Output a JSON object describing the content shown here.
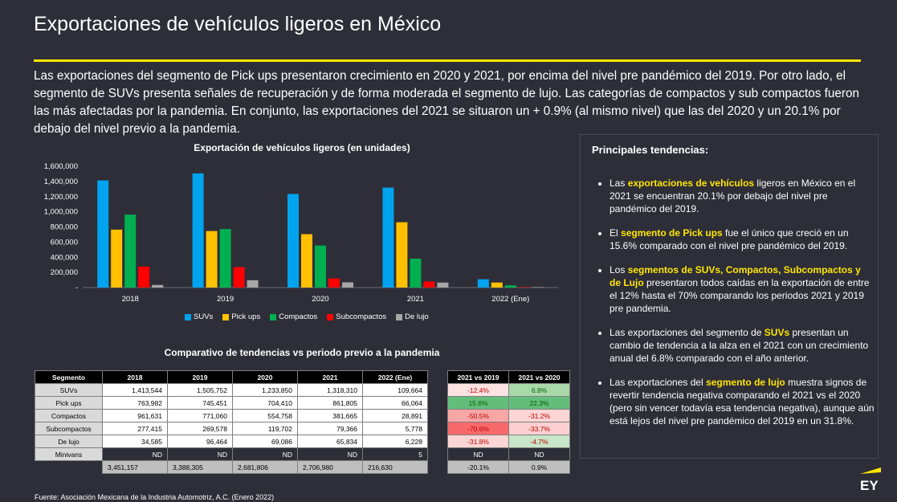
{
  "title": "Exportaciones de vehículos ligeros en México",
  "intro": "Las exportaciones del segmento de Pick ups presentaron crecimiento en 2020 y 2021, por encima del nivel pre pandémico del 2019. Por otro lado, el segmento de SUVs presenta señales de recuperación y de forma moderada el segmento de lujo. Las categorías de compactos y sub compactos fueron las más afectadas por la pandemia. En conjunto, las exportaciones del 2021 se situaron un + 0.9% (al mismo nivel) que las del 2020 y un 20.1% por debajo del nivel previo a la pandemia.",
  "colors": {
    "SUVs": "#00a3ee",
    "Pick ups": "#ffc000",
    "Compactos": "#00b050",
    "Subcompactos": "#ff0000",
    "De lujo": "#a6a6a6",
    "accent": "#ffe600"
  },
  "chart_data": {
    "type": "bar",
    "title": "Exportación de vehículos ligeros (en unidades)",
    "categories": [
      "2018",
      "2019",
      "2020",
      "2021",
      "2022 (Ene)"
    ],
    "series": [
      {
        "name": "SUVs",
        "values": [
          1413544,
          1505752,
          1233850,
          1318310,
          109664
        ]
      },
      {
        "name": "Pick ups",
        "values": [
          763982,
          745451,
          704410,
          861805,
          66064
        ]
      },
      {
        "name": "Compactos",
        "values": [
          961631,
          771060,
          554758,
          381665,
          28891
        ]
      },
      {
        "name": "Subcompactos",
        "values": [
          277415,
          269578,
          119702,
          79366,
          5778
        ]
      },
      {
        "name": "De lujo",
        "values": [
          34585,
          96464,
          69086,
          65834,
          6228
        ]
      }
    ],
    "ylim": [
      0,
      1600000
    ],
    "yticks": [
      "-",
      "200,000",
      "400,000",
      "600,000",
      "800,000",
      "1,000,000",
      "1,200,000",
      "1,400,000",
      "1,600,000"
    ],
    "legend": "bottom",
    "grid": false
  },
  "table": {
    "title": "Comparativo de tendencias vs periodo previo a la pandemia",
    "headers": [
      "Segmento",
      "2018",
      "2019",
      "2020",
      "2021",
      "2022 (Ene)"
    ],
    "rows": [
      [
        "SUVs",
        "1,413,544",
        "1,505,752",
        "1,233,850",
        "1,318,310",
        "109,664"
      ],
      [
        "Pick ups",
        "763,982",
        "745,451",
        "704,410",
        "861,805",
        "66,064"
      ],
      [
        "Compactos",
        "961,631",
        "771,060",
        "554,758",
        "381,665",
        "28,891"
      ],
      [
        "Subcompactos",
        "277,415",
        "269,578",
        "119,702",
        "79,366",
        "5,778"
      ],
      [
        "De lujo",
        "34,585",
        "96,464",
        "69,086",
        "65,834",
        "6,228"
      ],
      [
        "Minivans",
        "ND",
        "ND",
        "ND",
        "ND",
        "5"
      ]
    ],
    "totals": [
      "3,451,157",
      "3,388,305",
      "2,681,806",
      "2,706,980",
      "216,630"
    ]
  },
  "comparison": {
    "headers": [
      "2021 vs 2019",
      "2021 vs 2020"
    ],
    "rows": [
      {
        "a": "-12.4%",
        "a_color": "#fde2e2",
        "b": "6.8%",
        "b_color": "#a9d8a9"
      },
      {
        "a": "15.6%",
        "a_color": "#63be7b",
        "b": "22.3%",
        "b_color": "#63be7b"
      },
      {
        "a": "-50.5%",
        "a_color": "#f8a7a7",
        "b": "-31.2%",
        "b_color": "#fcd5d5"
      },
      {
        "a": "-70.6%",
        "a_color": "#f8696b",
        "b": "-33.7%",
        "b_color": "#fcd0d0"
      },
      {
        "a": "-31.8%",
        "a_color": "#fcd5d5",
        "b": "-4.7%",
        "b_color": "#c8e6c8"
      },
      {
        "a": "ND",
        "b": "ND"
      }
    ],
    "totals": [
      "-20.1%",
      "0.9%"
    ]
  },
  "panel": {
    "title": "Principales tendencias:",
    "items": [
      {
        "pre": "Las ",
        "hl": "exportaciones de vehículos",
        "post": " ligeros en México en el 2021 se encuentran 20.1% por debajo del nivel pre pandémico del 2019."
      },
      {
        "pre": "El ",
        "hl": "segmento de Pick ups",
        "post": " fue el único que creció en un 15.6% comparado con el nivel pre pandémico del 2019."
      },
      {
        "pre": "Los ",
        "hl": "segmentos de SUVs, Compactos, Subcompactos y de Lujo",
        "post": " presentaron todos caídas en la exportación de entre el 12% hasta el 70% comparando los periodos 2021 y 2019 pre pandemia."
      },
      {
        "pre": "Las exportaciones del segmento de ",
        "hl": "SUVs",
        "post": " presentan un cambio de tendencia a la alza en el 2021 con un crecimiento anual del 6.8% comparado con el año anterior."
      },
      {
        "pre": "Las exportaciones del ",
        "hl": "segmento de lujo",
        "post": " muestra signos de revertir tendencia negativa comparando el 2021 vs el 2020 (pero sin vencer todavía esa tendencia negativa), aunque aún está lejos del nivel pre pandémico del 2019 en un 31.8%."
      }
    ]
  },
  "source": "Fuente: Asociación Mexicana de la Industria Automotriz, A.C. (Enero 2022)",
  "logo": "EY"
}
